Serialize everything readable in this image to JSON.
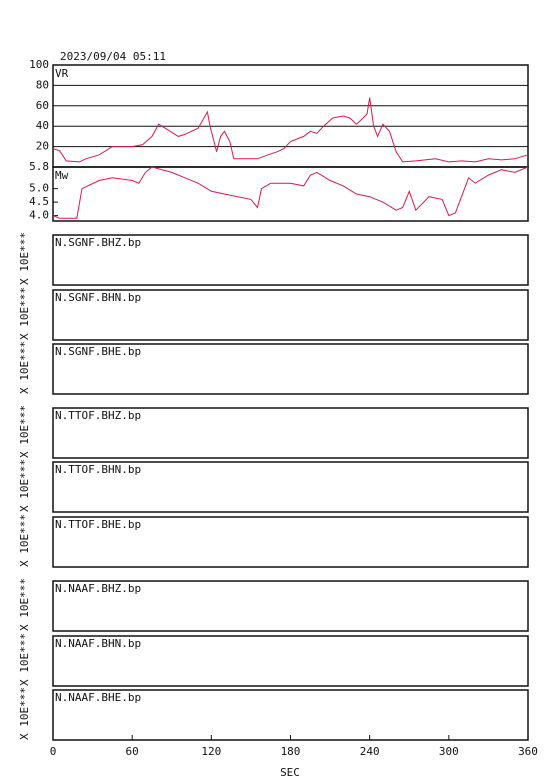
{
  "header": {
    "title": "2023/09/04 05:11"
  },
  "x_axis": {
    "label": "SEC",
    "xlim": [
      0,
      360
    ],
    "xticks": [
      0,
      60,
      120,
      180,
      240,
      300,
      360
    ]
  },
  "chart_data": [
    {
      "type": "line",
      "title": "VR",
      "ylim": [
        0,
        100
      ],
      "yticks": [
        20,
        40,
        60,
        80,
        100
      ],
      "grid": true,
      "x": [
        0,
        5,
        10,
        20,
        25,
        35,
        45,
        60,
        68,
        75,
        80,
        85,
        95,
        100,
        105,
        110,
        117,
        119,
        122,
        124,
        127,
        130,
        134,
        137,
        145,
        155,
        163,
        170,
        175,
        180,
        190,
        195,
        200,
        205,
        212,
        220,
        225,
        230,
        235,
        238,
        240,
        243,
        246,
        250,
        255,
        260,
        265,
        275,
        290,
        300,
        310,
        320,
        330,
        340,
        350,
        360
      ],
      "series": [
        {
          "name": "VR",
          "color": "#d81b4a",
          "values": [
            18,
            16,
            6,
            5,
            8,
            12,
            20,
            20,
            22,
            30,
            42,
            38,
            30,
            32,
            35,
            38,
            54,
            40,
            25,
            15,
            30,
            35,
            25,
            8,
            8,
            8,
            12,
            15,
            18,
            25,
            30,
            35,
            33,
            40,
            48,
            50,
            48,
            42,
            48,
            52,
            68,
            40,
            30,
            42,
            35,
            15,
            5,
            6,
            8,
            5,
            6,
            5,
            8,
            7,
            8,
            12
          ]
        }
      ]
    },
    {
      "type": "line",
      "title": "Mw",
      "ylim": [
        3.8,
        5.8
      ],
      "yticks": [
        {
          "value": 4,
          "label": "4.0"
        },
        4.5,
        {
          "value": 5,
          "label": "5.0"
        },
        5.8
      ],
      "grid": false,
      "x": [
        0,
        5,
        10,
        18,
        22,
        35,
        45,
        60,
        65,
        70,
        75,
        90,
        100,
        110,
        120,
        130,
        140,
        150,
        155,
        158,
        165,
        180,
        190,
        195,
        200,
        210,
        220,
        230,
        240,
        250,
        260,
        265,
        270,
        275,
        285,
        295,
        300,
        305,
        315,
        320,
        330,
        340,
        350,
        360
      ],
      "series": [
        {
          "name": "Mw",
          "color": "#d81b4a",
          "values": [
            4.0,
            3.9,
            3.9,
            3.9,
            5.0,
            5.3,
            5.4,
            5.3,
            5.2,
            5.6,
            5.8,
            5.6,
            5.4,
            5.2,
            4.9,
            4.8,
            4.7,
            4.6,
            4.3,
            5.0,
            5.2,
            5.2,
            5.1,
            5.5,
            5.6,
            5.3,
            5.1,
            4.8,
            4.7,
            4.5,
            4.2,
            4.3,
            4.9,
            4.2,
            4.7,
            4.6,
            4.0,
            4.1,
            5.4,
            5.2,
            5.5,
            5.7,
            5.6,
            5.8
          ]
        }
      ]
    }
  ],
  "panels": [
    {
      "label": "N.SGNF.BHZ.bp",
      "ylabel": "X 10E***"
    },
    {
      "label": "N.SGNF.BHN.bp",
      "ylabel": "X 10E***"
    },
    {
      "label": "N.SGNF.BHE.bp",
      "ylabel": "X 10E***"
    },
    {
      "label": "N.TTOF.BHZ.bp",
      "ylabel": "X 10E***"
    },
    {
      "label": "N.TTOF.BHN.bp",
      "ylabel": "X 10E***"
    },
    {
      "label": "N.TTOF.BHE.bp",
      "ylabel": "X 10E***"
    },
    {
      "label": "N.NAAF.BHZ.bp",
      "ylabel": "X 10E***"
    },
    {
      "label": "N.NAAF.BHN.bp",
      "ylabel": "X 10E***"
    },
    {
      "label": "N.NAAF.BHE.bp",
      "ylabel": "X 10E***"
    }
  ]
}
